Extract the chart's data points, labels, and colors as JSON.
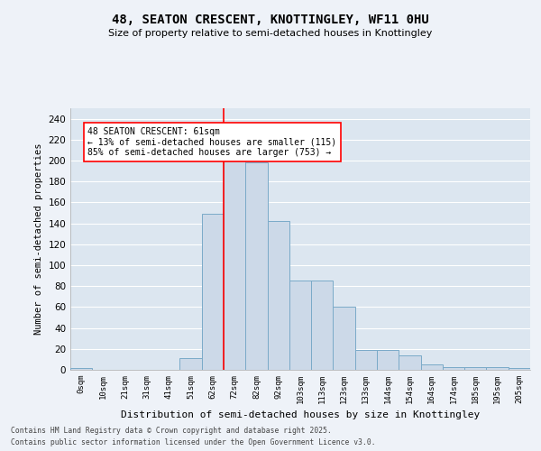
{
  "title": "48, SEATON CRESCENT, KNOTTINGLEY, WF11 0HU",
  "subtitle": "Size of property relative to semi-detached houses in Knottingley",
  "xlabel": "Distribution of semi-detached houses by size in Knottingley",
  "ylabel": "Number of semi-detached properties",
  "bar_color": "#ccd9e8",
  "bar_edge_color": "#7aaac8",
  "background_color": "#dce6f0",
  "grid_color": "#ffffff",
  "tick_labels": [
    "0sqm",
    "10sqm",
    "21sqm",
    "31sqm",
    "41sqm",
    "51sqm",
    "62sqm",
    "72sqm",
    "82sqm",
    "92sqm",
    "103sqm",
    "113sqm",
    "123sqm",
    "133sqm",
    "144sqm",
    "154sqm",
    "164sqm",
    "174sqm",
    "185sqm",
    "195sqm",
    "205sqm"
  ],
  "bar_values": [
    2,
    0,
    0,
    0,
    0,
    11,
    149,
    202,
    198,
    142,
    85,
    85,
    60,
    19,
    19,
    14,
    5,
    3,
    3,
    3,
    2
  ],
  "ylim": [
    0,
    250
  ],
  "yticks": [
    0,
    20,
    40,
    60,
    80,
    100,
    120,
    140,
    160,
    180,
    200,
    220,
    240
  ],
  "red_line_x": 6.5,
  "annotation_text": "48 SEATON CRESCENT: 61sqm\n← 13% of semi-detached houses are smaller (115)\n85% of semi-detached houses are larger (753) →",
  "footer_line1": "Contains HM Land Registry data © Crown copyright and database right 2025.",
  "footer_line2": "Contains public sector information licensed under the Open Government Licence v3.0.",
  "fig_bg": "#eef2f8"
}
